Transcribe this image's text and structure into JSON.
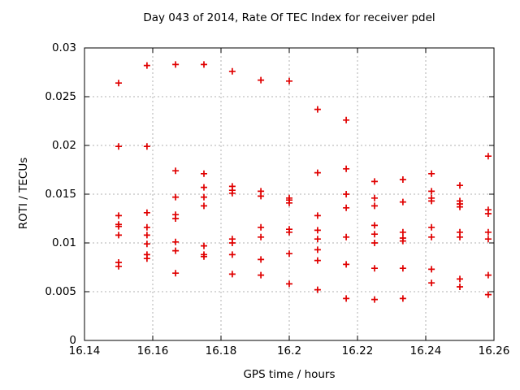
{
  "page": {
    "background": "#ffffff"
  },
  "chart_data": {
    "type": "scatter",
    "title": "Day 043 of 2014, Rate Of TEC Index for receiver pdel",
    "xlabel": "GPS time / hours",
    "ylabel": "ROTI / TECUs",
    "xlim": [
      16.14,
      16.26
    ],
    "ylim": [
      0,
      0.03
    ],
    "x_tick_values": [
      16.14,
      16.16,
      16.18,
      16.2,
      16.22,
      16.24,
      16.26
    ],
    "x_tick_labels": [
      "16.14",
      "16.16",
      "16.18",
      "16.2",
      "16.22",
      "16.24",
      "16.26"
    ],
    "y_tick_values": [
      0,
      0.005,
      0.01,
      0.015,
      0.02,
      0.025,
      0.03
    ],
    "y_tick_labels": [
      "0",
      "0.005",
      "0.01",
      "0.015",
      "0.02",
      "0.025",
      "0.03"
    ],
    "grid": true,
    "legend": "none",
    "marker": "plus",
    "colors": {
      "marker": "#e00000",
      "grid": "#b0b0b0",
      "frame": "#000000",
      "text": "#000000"
    },
    "series": [
      {
        "name": "ROTI",
        "points": [
          [
            16.15,
            0.0264
          ],
          [
            16.15,
            0.0199
          ],
          [
            16.15,
            0.0128
          ],
          [
            16.15,
            0.0119
          ],
          [
            16.15,
            0.0117
          ],
          [
            16.15,
            0.0108
          ],
          [
            16.15,
            0.008
          ],
          [
            16.15,
            0.0076
          ],
          [
            16.1583,
            0.0282
          ],
          [
            16.1583,
            0.0199
          ],
          [
            16.1583,
            0.0131
          ],
          [
            16.1583,
            0.0116
          ],
          [
            16.1583,
            0.0108
          ],
          [
            16.1583,
            0.0099
          ],
          [
            16.1583,
            0.0088
          ],
          [
            16.1583,
            0.0084
          ],
          [
            16.1667,
            0.0283
          ],
          [
            16.1667,
            0.0174
          ],
          [
            16.1667,
            0.0147
          ],
          [
            16.1667,
            0.0129
          ],
          [
            16.1667,
            0.0125
          ],
          [
            16.1667,
            0.0101
          ],
          [
            16.1667,
            0.0092
          ],
          [
            16.1667,
            0.0069
          ],
          [
            16.175,
            0.0283
          ],
          [
            16.175,
            0.0171
          ],
          [
            16.175,
            0.0157
          ],
          [
            16.175,
            0.0147
          ],
          [
            16.175,
            0.0138
          ],
          [
            16.175,
            0.0097
          ],
          [
            16.175,
            0.0088
          ],
          [
            16.175,
            0.0086
          ],
          [
            16.1833,
            0.0276
          ],
          [
            16.1833,
            0.0158
          ],
          [
            16.1833,
            0.0154
          ],
          [
            16.1833,
            0.0151
          ],
          [
            16.1833,
            0.0104
          ],
          [
            16.1833,
            0.01
          ],
          [
            16.1833,
            0.0088
          ],
          [
            16.1833,
            0.0068
          ],
          [
            16.1917,
            0.0267
          ],
          [
            16.1917,
            0.0153
          ],
          [
            16.1917,
            0.0148
          ],
          [
            16.1917,
            0.0116
          ],
          [
            16.1917,
            0.0106
          ],
          [
            16.1917,
            0.0083
          ],
          [
            16.1917,
            0.0067
          ],
          [
            16.2,
            0.0266
          ],
          [
            16.2,
            0.0146
          ],
          [
            16.2,
            0.0144
          ],
          [
            16.2,
            0.0141
          ],
          [
            16.2,
            0.0114
          ],
          [
            16.2,
            0.0111
          ],
          [
            16.2,
            0.0089
          ],
          [
            16.2,
            0.0058
          ],
          [
            16.2083,
            0.0237
          ],
          [
            16.2083,
            0.0172
          ],
          [
            16.2083,
            0.0128
          ],
          [
            16.2083,
            0.0113
          ],
          [
            16.2083,
            0.0104
          ],
          [
            16.2083,
            0.0093
          ],
          [
            16.2083,
            0.0082
          ],
          [
            16.2083,
            0.0052
          ],
          [
            16.2167,
            0.0226
          ],
          [
            16.2167,
            0.0176
          ],
          [
            16.2167,
            0.015
          ],
          [
            16.2167,
            0.0136
          ],
          [
            16.2167,
            0.0106
          ],
          [
            16.2167,
            0.0078
          ],
          [
            16.2167,
            0.0043
          ],
          [
            16.225,
            0.0163
          ],
          [
            16.225,
            0.0146
          ],
          [
            16.225,
            0.0138
          ],
          [
            16.225,
            0.0118
          ],
          [
            16.225,
            0.0109
          ],
          [
            16.225,
            0.01
          ],
          [
            16.225,
            0.0074
          ],
          [
            16.225,
            0.0042
          ],
          [
            16.2333,
            0.0165
          ],
          [
            16.2333,
            0.0142
          ],
          [
            16.2333,
            0.0111
          ],
          [
            16.2333,
            0.0105
          ],
          [
            16.2333,
            0.0102
          ],
          [
            16.2333,
            0.0074
          ],
          [
            16.2333,
            0.0043
          ],
          [
            16.2417,
            0.0171
          ],
          [
            16.2417,
            0.0153
          ],
          [
            16.2417,
            0.0146
          ],
          [
            16.2417,
            0.0143
          ],
          [
            16.2417,
            0.0116
          ],
          [
            16.2417,
            0.0106
          ],
          [
            16.2417,
            0.0073
          ],
          [
            16.2417,
            0.0059
          ],
          [
            16.25,
            0.0159
          ],
          [
            16.25,
            0.0143
          ],
          [
            16.25,
            0.014
          ],
          [
            16.25,
            0.0137
          ],
          [
            16.25,
            0.0111
          ],
          [
            16.25,
            0.0106
          ],
          [
            16.25,
            0.0063
          ],
          [
            16.25,
            0.0055
          ],
          [
            16.2583,
            0.0189
          ],
          [
            16.2583,
            0.0134
          ],
          [
            16.2583,
            0.013
          ],
          [
            16.2583,
            0.0111
          ],
          [
            16.2583,
            0.0104
          ],
          [
            16.2583,
            0.0067
          ],
          [
            16.2583,
            0.0047
          ]
        ]
      }
    ]
  }
}
